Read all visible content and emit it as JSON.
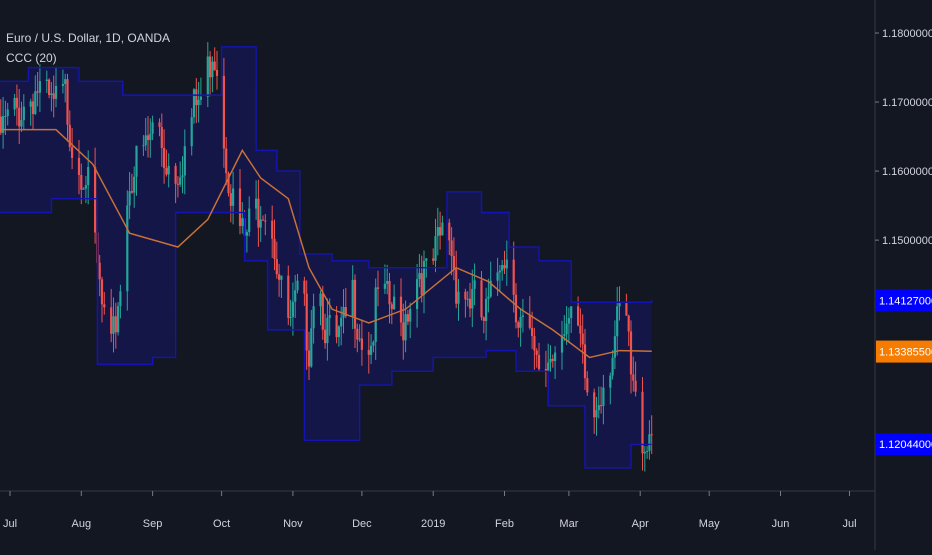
{
  "legend": {
    "symbol_line": "Euro / U.S. Dollar, 1D, OANDA",
    "indicator_line": "CCC (20)"
  },
  "colors": {
    "background": "#131722",
    "band": "#1414b4",
    "band_fill": "#13164a",
    "midline": "#c8703a",
    "candle_up": "#26a69a",
    "candle_down": "#ef5350",
    "upper_tag": "#0000ff",
    "mid_tag": "#f57c00",
    "lower_tag": "#0000ff"
  },
  "chart_data": {
    "type": "candlestick",
    "title": "Euro / U.S. Dollar, 1D, OANDA",
    "indicator": "CCC (20)",
    "y_axis": {
      "ylim": [
        1.11366,
        1.18478
      ],
      "ticks": [
        "1.18000000",
        "1.17000000",
        "1.16000000",
        "1.15000000"
      ]
    },
    "x_axis": {
      "ticks": [
        {
          "label": "Jul",
          "day": 0
        },
        {
          "label": "Aug",
          "day": 31
        },
        {
          "label": "Sep",
          "day": 62
        },
        {
          "label": "Oct",
          "day": 92
        },
        {
          "label": "Nov",
          "day": 123
        },
        {
          "label": "Dec",
          "day": 153
        },
        {
          "label": "2019",
          "day": 184
        },
        {
          "label": "Feb",
          "day": 215
        },
        {
          "label": "Mar",
          "day": 243
        },
        {
          "label": "Apr",
          "day": 274
        },
        {
          "label": "May",
          "day": 304
        },
        {
          "label": "Jun",
          "day": 335
        },
        {
          "label": "Jul",
          "day": 365
        }
      ]
    },
    "price_tags": [
      {
        "name": "upper",
        "label": "1.14127000",
        "value": 1.14127
      },
      {
        "name": "middle",
        "label": "1.13385500",
        "value": 1.133855
      },
      {
        "name": "lower",
        "label": "1.12044000",
        "value": 1.12044
      }
    ],
    "close_path": [
      [
        -6,
        1.164
      ],
      [
        0,
        1.168
      ],
      [
        5,
        1.169
      ],
      [
        12,
        1.172
      ],
      [
        18,
        1.169
      ],
      [
        24,
        1.171
      ],
      [
        28,
        1.162
      ],
      [
        33,
        1.16
      ],
      [
        40,
        1.14
      ],
      [
        44,
        1.133
      ],
      [
        48,
        1.144
      ],
      [
        52,
        1.159
      ],
      [
        60,
        1.164
      ],
      [
        64,
        1.168
      ],
      [
        67,
        1.162
      ],
      [
        72,
        1.16
      ],
      [
        76,
        1.163
      ],
      [
        80,
        1.169
      ],
      [
        84,
        1.171
      ],
      [
        88,
        1.178
      ],
      [
        90,
        1.176
      ],
      [
        93,
        1.165
      ],
      [
        98,
        1.153
      ],
      [
        102,
        1.15
      ],
      [
        106,
        1.154
      ],
      [
        110,
        1.156
      ],
      [
        114,
        1.152
      ],
      [
        118,
        1.142
      ],
      [
        122,
        1.137
      ],
      [
        126,
        1.143
      ],
      [
        130,
        1.135
      ],
      [
        133,
        1.147
      ],
      [
        137,
        1.138
      ],
      [
        141,
        1.134
      ],
      [
        145,
        1.137
      ],
      [
        149,
        1.142
      ],
      [
        153,
        1.136
      ],
      [
        157,
        1.135
      ],
      [
        160,
        1.142
      ],
      [
        166,
        1.14
      ],
      [
        170,
        1.137
      ],
      [
        174,
        1.142
      ],
      [
        178,
        1.146
      ],
      [
        182,
        1.144
      ],
      [
        186,
        1.149
      ],
      [
        190,
        1.153
      ],
      [
        194,
        1.144
      ],
      [
        198,
        1.142
      ],
      [
        202,
        1.141
      ],
      [
        206,
        1.138
      ],
      [
        210,
        1.142
      ],
      [
        214,
        1.149
      ],
      [
        218,
        1.146
      ],
      [
        221,
        1.139
      ],
      [
        225,
        1.136
      ],
      [
        229,
        1.131
      ],
      [
        233,
        1.132
      ],
      [
        237,
        1.135
      ],
      [
        240,
        1.139
      ],
      [
        244,
        1.137
      ],
      [
        247,
        1.136
      ],
      [
        250,
        1.13
      ],
      [
        253,
        1.123
      ],
      [
        256,
        1.128
      ],
      [
        260,
        1.132
      ],
      [
        264,
        1.137
      ],
      [
        267,
        1.142
      ],
      [
        270,
        1.13
      ],
      [
        273,
        1.124
      ],
      [
        276,
        1.121
      ],
      [
        279,
        1.123
      ]
    ],
    "channel_upper": [
      [
        -6,
        1.173
      ],
      [
        8,
        1.175
      ],
      [
        30,
        1.173
      ],
      [
        49,
        1.171
      ],
      [
        60,
        1.171
      ],
      [
        92,
        1.178
      ],
      [
        103,
        1.178
      ],
      [
        107,
        1.163
      ],
      [
        116,
        1.16
      ],
      [
        126,
        1.148
      ],
      [
        140,
        1.147
      ],
      [
        156,
        1.146
      ],
      [
        190,
        1.157
      ],
      [
        205,
        1.154
      ],
      [
        217,
        1.149
      ],
      [
        230,
        1.147
      ],
      [
        244,
        1.141
      ],
      [
        253,
        1.141
      ],
      [
        263,
        1.141
      ],
      [
        279,
        1.1413
      ]
    ],
    "channel_lower": [
      [
        -6,
        1.154
      ],
      [
        18,
        1.156
      ],
      [
        38,
        1.132
      ],
      [
        62,
        1.133
      ],
      [
        72,
        1.154
      ],
      [
        85,
        1.154
      ],
      [
        102,
        1.147
      ],
      [
        112,
        1.137
      ],
      [
        128,
        1.121
      ],
      [
        152,
        1.129
      ],
      [
        166,
        1.131
      ],
      [
        184,
        1.133
      ],
      [
        207,
        1.134
      ],
      [
        220,
        1.131
      ],
      [
        234,
        1.126
      ],
      [
        250,
        1.117
      ],
      [
        270,
        1.1204
      ],
      [
        279,
        1.1204
      ]
    ],
    "channel_middle": [
      [
        -6,
        1.166
      ],
      [
        20,
        1.166
      ],
      [
        36,
        1.161
      ],
      [
        52,
        1.151
      ],
      [
        73,
        1.149
      ],
      [
        86,
        1.153
      ],
      [
        101,
        1.163
      ],
      [
        109,
        1.159
      ],
      [
        121,
        1.156
      ],
      [
        130,
        1.146
      ],
      [
        140,
        1.14
      ],
      [
        156,
        1.138
      ],
      [
        172,
        1.14
      ],
      [
        194,
        1.146
      ],
      [
        208,
        1.144
      ],
      [
        222,
        1.14
      ],
      [
        236,
        1.137
      ],
      [
        252,
        1.133
      ],
      [
        265,
        1.134
      ],
      [
        279,
        1.1339
      ]
    ]
  }
}
